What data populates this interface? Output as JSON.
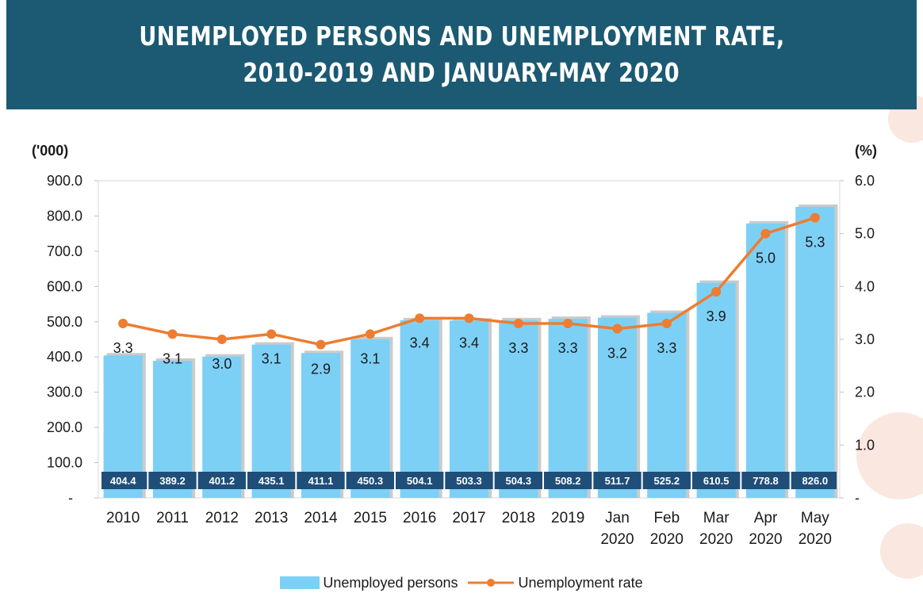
{
  "header": {
    "title_line1": "UNEMPLOYED PERSONS AND UNEMPLOYMENT RATE,",
    "title_line2": "2010-2019 AND JANUARY-MAY 2020"
  },
  "colors": {
    "banner": "#1b5a72",
    "bar": "#7dd0f5",
    "bar_shadow": "#a9a9a9",
    "line": "#ed7d31",
    "value_box": "#1f4e79"
  },
  "legend": {
    "bar_label": "Unemployed persons",
    "line_label": "Unemployment rate"
  },
  "chart_data": {
    "type": "bar",
    "y_left_unit": "('000)",
    "y_right_unit": "(%)",
    "y_left_ticks": [
      "-",
      "100.0",
      "200.0",
      "300.0",
      "400.0",
      "500.0",
      "600.0",
      "700.0",
      "800.0",
      "900.0"
    ],
    "y_right_ticks": [
      "-",
      "1.0",
      "2.0",
      "3.0",
      "4.0",
      "5.0",
      "6.0"
    ],
    "ylim_left": [
      0,
      900
    ],
    "ylim_right": [
      0,
      6
    ],
    "categories": [
      [
        "2010"
      ],
      [
        "2011"
      ],
      [
        "2012"
      ],
      [
        "2013"
      ],
      [
        "2014"
      ],
      [
        "2015"
      ],
      [
        "2016"
      ],
      [
        "2017"
      ],
      [
        "2018"
      ],
      [
        "2019"
      ],
      [
        "Jan",
        "2020"
      ],
      [
        "Feb",
        "2020"
      ],
      [
        "Mar",
        "2020"
      ],
      [
        "Apr",
        "2020"
      ],
      [
        "May",
        "2020"
      ]
    ],
    "series": [
      {
        "name": "Unemployed persons",
        "type": "bar",
        "axis": "left",
        "values": [
          404.4,
          389.2,
          401.2,
          435.1,
          411.1,
          450.3,
          504.1,
          503.3,
          504.3,
          508.2,
          511.7,
          525.2,
          610.5,
          778.8,
          826.0
        ],
        "labels": [
          "404.4",
          "389.2",
          "401.2",
          "435.1",
          "411.1",
          "450.3",
          "504.1",
          "503.3",
          "504.3",
          "508.2",
          "511.7",
          "525.2",
          "610.5",
          "778.8",
          "826.0"
        ]
      },
      {
        "name": "Unemployment rate",
        "type": "line",
        "axis": "right",
        "values": [
          3.3,
          3.1,
          3.0,
          3.1,
          2.9,
          3.1,
          3.4,
          3.4,
          3.3,
          3.3,
          3.2,
          3.3,
          3.9,
          5.0,
          5.3
        ],
        "labels": [
          "3.3",
          "3.1",
          "3.0",
          "3.1",
          "2.9",
          "3.1",
          "3.4",
          "3.4",
          "3.3",
          "3.3",
          "3.2",
          "3.3",
          "3.9",
          "5.0",
          "5.3"
        ]
      }
    ]
  }
}
